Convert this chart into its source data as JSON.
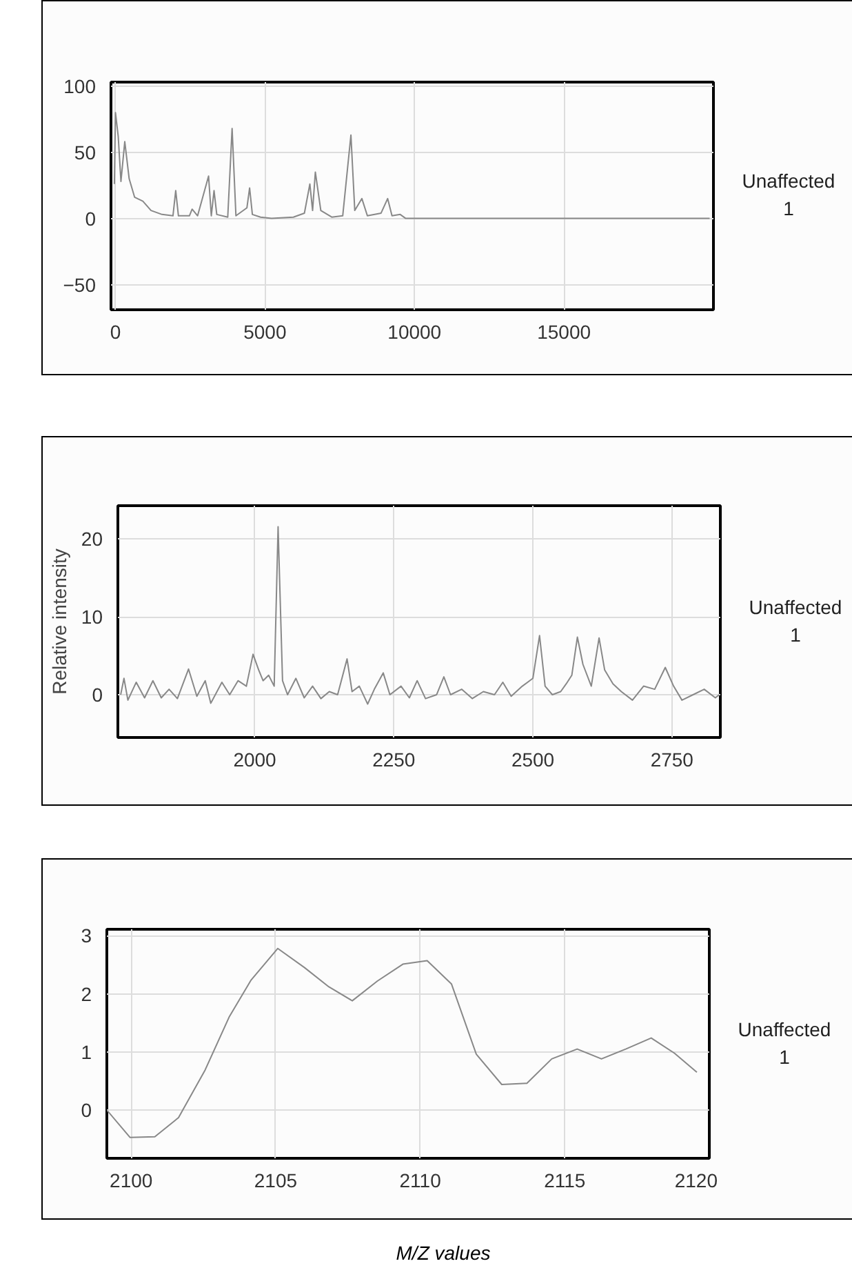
{
  "chart_data": [
    {
      "type": "line",
      "annotations": [
        "Unaffected\n1"
      ],
      "xlim": [
        -150,
        20000
      ],
      "ylim": [
        -69,
        103
      ],
      "xticks": [
        0,
        5000,
        10000,
        15000
      ],
      "yticks": [
        -50,
        0,
        50,
        100
      ],
      "grid": true,
      "series": [
        {
          "color": "#888888",
          "x": [
            -37,
            0,
            92,
            183,
            311,
            458,
            641,
            916,
            1190,
            1557,
            1923,
            2015,
            2106,
            2473,
            2564,
            2747,
            3114,
            3205,
            3297,
            3388,
            3755,
            3901,
            4029,
            4396,
            4487,
            4579,
            4853,
            5220,
            5952,
            6319,
            6502,
            6593,
            6685,
            6868,
            7234,
            7601,
            7875,
            8004,
            8242,
            8425,
            8883,
            9103,
            9249,
            9524,
            9707,
            19872
          ],
          "values": [
            26,
            80,
            62,
            28,
            58,
            30,
            16,
            13,
            6,
            3,
            2,
            21,
            2,
            2,
            7,
            2,
            32,
            2,
            21,
            3,
            1,
            68,
            2,
            8,
            23,
            3,
            1,
            0,
            1,
            4,
            26,
            6,
            35,
            6,
            1,
            2,
            63,
            6,
            15,
            2,
            4,
            15,
            2,
            3,
            0,
            0
          ]
        }
      ]
    },
    {
      "type": "line",
      "ylabel": "Relative intensity",
      "annotations": [
        "Unaffected\n1"
      ],
      "xlim": [
        1754,
        2837
      ],
      "ylim": [
        -5.5,
        24.3
      ],
      "xticks": [
        2000,
        2250,
        2500,
        2750
      ],
      "yticks": [
        0,
        10,
        20
      ],
      "grid": true,
      "series": [
        {
          "color": "#888888",
          "x": [
            1759,
            1765,
            1772,
            1787,
            1802,
            1817,
            1832,
            1846,
            1861,
            1881,
            1896,
            1911,
            1921,
            1941,
            1955,
            1970,
            1985,
            1997,
            2007,
            2015,
            2025,
            2035,
            2042,
            2050,
            2059,
            2074,
            2089,
            2104,
            2119,
            2134,
            2149,
            2166,
            2175,
            2188,
            2203,
            2215,
            2231,
            2243,
            2263,
            2278,
            2292,
            2307,
            2327,
            2340,
            2352,
            2372,
            2391,
            2411,
            2431,
            2446,
            2461,
            2481,
            2500,
            2512,
            2522,
            2535,
            2550,
            2560,
            2570,
            2580,
            2590,
            2605,
            2619,
            2629,
            2644,
            2659,
            2679,
            2699,
            2719,
            2738,
            2753,
            2768,
            2788,
            2808,
            2828,
            2835
          ],
          "values": [
            0,
            2.1,
            -0.7,
            1.6,
            -0.4,
            1.8,
            -0.4,
            0.7,
            -0.5,
            3.3,
            -0.2,
            1.8,
            -1.1,
            1.6,
            0,
            1.8,
            1.1,
            5.2,
            3.2,
            1.8,
            2.5,
            1.1,
            21.6,
            1.8,
            0,
            2.1,
            -0.4,
            1.1,
            -0.5,
            0.4,
            0,
            4.6,
            0.4,
            1.1,
            -1.2,
            0.7,
            2.8,
            0,
            1.1,
            -0.4,
            1.8,
            -0.5,
            0,
            2.3,
            0,
            0.7,
            -0.5,
            0.4,
            0,
            1.6,
            -0.2,
            1.1,
            2.1,
            7.6,
            1.1,
            0,
            0.4,
            1.4,
            2.5,
            7.4,
            3.9,
            1.1,
            7.3,
            3.2,
            1.4,
            0.4,
            -0.7,
            1.1,
            0.7,
            3.5,
            1.1,
            -0.7,
            0,
            0.7,
            -0.4,
            0
          ]
        }
      ]
    },
    {
      "type": "line",
      "xlabel": "M/Z values",
      "annotations": [
        "Unaffected\n1"
      ],
      "xlim": [
        2099.16,
        2120
      ],
      "ylim": [
        -0.83,
        3.11
      ],
      "xticks": [
        2100,
        2105,
        2110,
        2115,
        2120
      ],
      "yticks": [
        0,
        1,
        2,
        3
      ],
      "grid": true,
      "series": [
        {
          "color": "#888888",
          "x": [
            2099.16,
            2099.96,
            2100.82,
            2101.64,
            2102.56,
            2103.4,
            2104.14,
            2105.07,
            2106.0,
            2106.84,
            2107.65,
            2108.52,
            2109.4,
            2110.24,
            2111.08,
            2111.94,
            2112.82,
            2113.69,
            2114.55,
            2115.43,
            2116.27,
            2117.11,
            2117.99,
            2118.79,
            2119.57
          ],
          "values": [
            0,
            -0.47,
            -0.46,
            -0.13,
            0.69,
            1.61,
            2.23,
            2.78,
            2.45,
            2.12,
            1.88,
            2.22,
            2.51,
            2.57,
            2.17,
            0.96,
            0.44,
            0.46,
            0.88,
            1.05,
            0.88,
            1.05,
            1.24,
            0.98,
            0.65
          ]
        }
      ]
    }
  ]
}
